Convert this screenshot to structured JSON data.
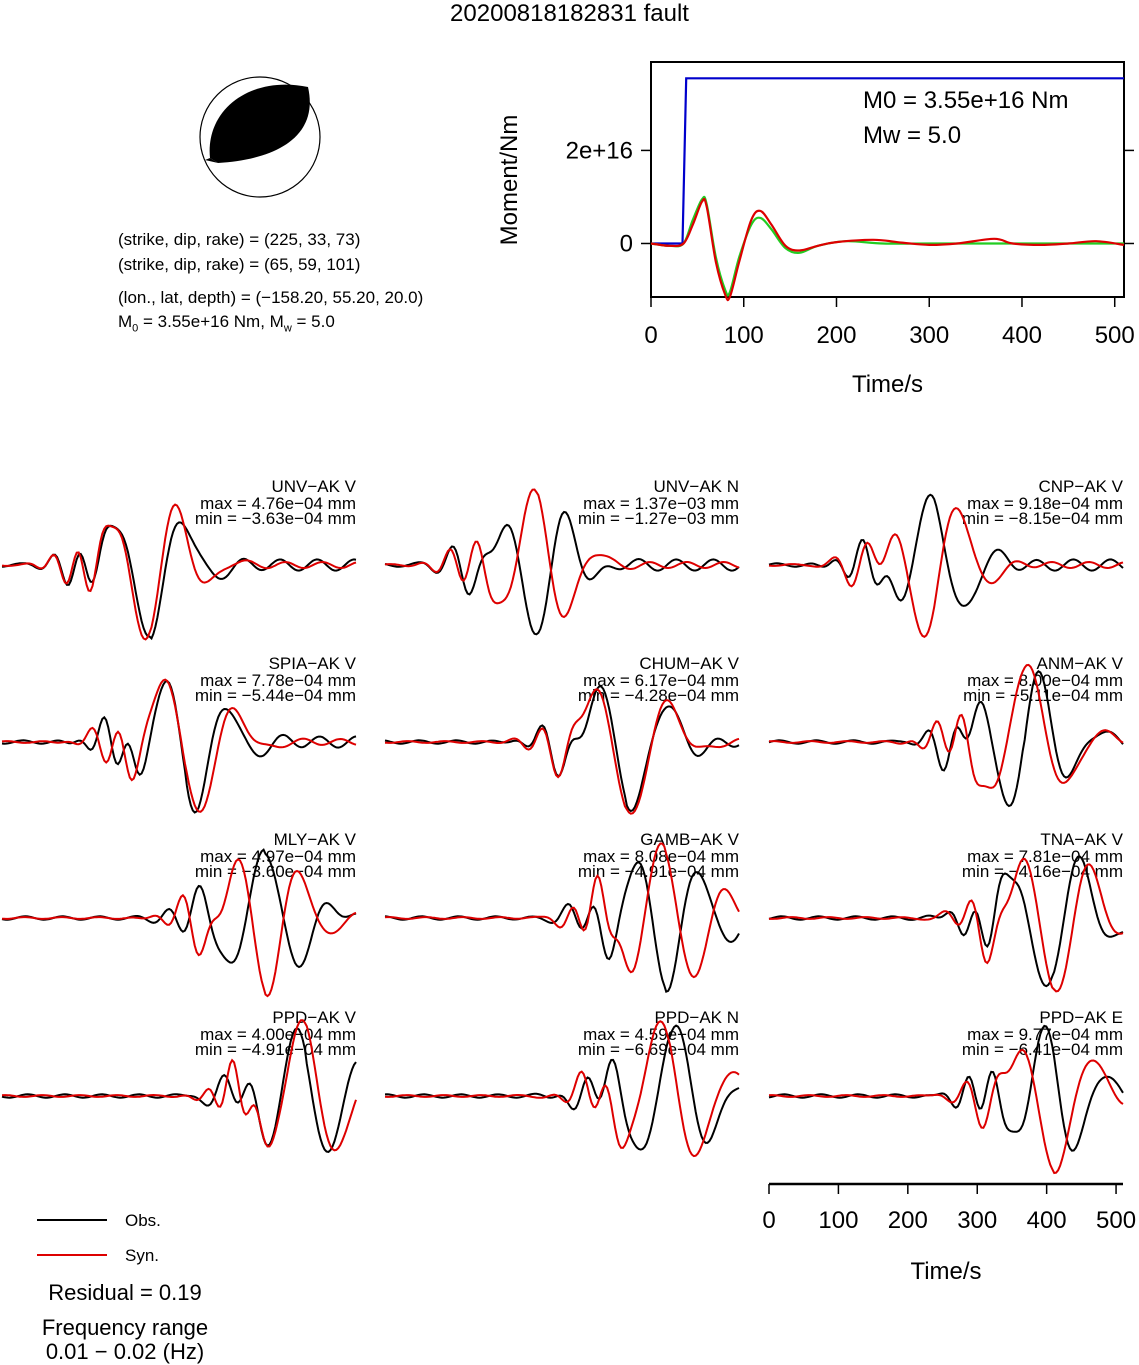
{
  "title": "20200818182831 fault",
  "mechanism": {
    "plane1": "(strike, dip, rake) = (225, 33, 73)",
    "plane2": "(strike, dip, rake) = (65, 59, 101)",
    "location": "(lon., lat, depth) = (−158.20, 55.20, 20.0)",
    "moment_line": {
      "m0_label": "M",
      "m0_sub": "0",
      "m0_value": " = 3.55e+16 Nm, M",
      "mw_sub": "w",
      "mw_value": " = 5.0"
    }
  },
  "chart_data": [
    {
      "type": "line",
      "name": "moment-rate-function",
      "ylabel": "Moment/Nm",
      "xlabel": "Time/s",
      "xlim": [
        0,
        510
      ],
      "ylim": [
        -1.15e+16,
        3.9e+16
      ],
      "x_ticks": [
        "0",
        "100",
        "200",
        "300",
        "400",
        "500"
      ],
      "y_ticks": [
        "0",
        "2e+16"
      ],
      "y_tick_values": [
        0,
        2e+16
      ],
      "annotation": {
        "m0": "M0 = 3.55e+16 Nm",
        "mw": "Mw = 5.0"
      },
      "series": [
        {
          "color": "#0000cc",
          "kind": "cumulative-moment",
          "points": [
            [
              0,
              0
            ],
            [
              34,
              0
            ],
            [
              38,
              3.55e+16
            ],
            [
              510,
              3.55e+16
            ]
          ]
        },
        {
          "color": "#22cc22",
          "kind": "moment-rate",
          "points": [
            [
              0,
              0
            ],
            [
              20,
              -500000000000000.0
            ],
            [
              35,
              0
            ],
            [
              45,
              5000000000000000.0
            ],
            [
              55,
              9500000000000000.0
            ],
            [
              60,
              8500000000000000.0
            ],
            [
              70,
              -3000000000000000.0
            ],
            [
              80,
              -1e+16
            ],
            [
              85,
              -1.05e+16
            ],
            [
              95,
              -3000000000000000.0
            ],
            [
              108,
              4000000000000000.0
            ],
            [
              118,
              5500000000000000.0
            ],
            [
              130,
              3000000000000000.0
            ],
            [
              145,
              -1000000000000000.0
            ],
            [
              160,
              -2000000000000000.0
            ],
            [
              180,
              -500000000000000.0
            ],
            [
              210,
              500000000000000.0
            ],
            [
              250,
              0
            ],
            [
              300,
              0
            ],
            [
              400,
              0
            ],
            [
              510,
              0
            ]
          ]
        },
        {
          "color": "#dd0000",
          "kind": "moment-rate",
          "points": [
            [
              0,
              0
            ],
            [
              20,
              -500000000000000.0
            ],
            [
              35,
              0
            ],
            [
              45,
              4000000000000000.0
            ],
            [
              55,
              9000000000000000.0
            ],
            [
              60,
              8000000000000000.0
            ],
            [
              70,
              -4000000000000000.0
            ],
            [
              80,
              -1.1e+16
            ],
            [
              85,
              -1.15e+16
            ],
            [
              95,
              -4000000000000000.0
            ],
            [
              108,
              5000000000000000.0
            ],
            [
              118,
              7000000000000000.0
            ],
            [
              130,
              4000000000000000.0
            ],
            [
              145,
              -500000000000000.0
            ],
            [
              160,
              -1500000000000000.0
            ],
            [
              180,
              -500000000000000.0
            ],
            [
              200,
              300000000000000.0
            ],
            [
              240,
              800000000000000.0
            ],
            [
              270,
              200000000000000.0
            ],
            [
              300,
              -300000000000000.0
            ],
            [
              330,
              0
            ],
            [
              370,
              1000000000000000.0
            ],
            [
              390,
              0
            ],
            [
              420,
              -300000000000000.0
            ],
            [
              450,
              0
            ],
            [
              480,
              500000000000000.0
            ],
            [
              510,
              -300000000000000.0
            ]
          ]
        }
      ]
    },
    {
      "type": "line",
      "name": "waveform-comparison",
      "xlabel": "Time/s",
      "xlim": [
        0,
        510
      ],
      "x_ticks": [
        "0",
        "100",
        "200",
        "300",
        "400",
        "500"
      ],
      "legend": {
        "position": "bottom-left",
        "obs": "Obs.",
        "syn": "Syn.",
        "obs_color": "#000000",
        "syn_color": "#dd0000"
      },
      "residual": "Residual = 0.19",
      "frequency_label": "Frequency range",
      "frequency_range": "0.01 − 0.02 (Hz)",
      "stations": [
        {
          "name": "UNV−AK V",
          "max": "max = 4.76e−04 mm",
          "min": "min = −3.63e−04 mm",
          "seed": 1,
          "tc": 0.42,
          "w": 0.14
        },
        {
          "name": "UNV−AK N",
          "max": "max = 1.37e−03 mm",
          "min": "min = −1.27e−03 mm",
          "seed": 2,
          "tc": 0.43,
          "w": 0.13
        },
        {
          "name": "CNP−AK V",
          "max": "max = 9.18e−04 mm",
          "min": "min = −8.15e−04 mm",
          "seed": 3,
          "tc": 0.47,
          "w": 0.13
        },
        {
          "name": "SPIA−AK V",
          "max": "max = 7.78e−04 mm",
          "min": "min = −5.44e−04 mm",
          "seed": 4,
          "tc": 0.52,
          "w": 0.15
        },
        {
          "name": "CHUM−AK V",
          "max": "max = 6.17e−04 mm",
          "min": "min = −4.28e−04 mm",
          "seed": 5,
          "tc": 0.68,
          "w": 0.15
        },
        {
          "name": "ANM−AK V",
          "max": "max = 8.00e−04 mm",
          "min": "min = −5.11e−04 mm",
          "seed": 6,
          "tc": 0.72,
          "w": 0.16
        },
        {
          "name": "MLY−AK V",
          "max": "max = 4.97e−04 mm",
          "min": "min = −3.60e−04 mm",
          "seed": 7,
          "tc": 0.74,
          "w": 0.15
        },
        {
          "name": "GAMB−AK V",
          "max": "max = 8.08e−04 mm",
          "min": "min = −4.91e−04 mm",
          "seed": 8,
          "tc": 0.79,
          "w": 0.17
        },
        {
          "name": "TNA−AK V",
          "max": "max = 7.81e−04 mm",
          "min": "min = −4.16e−04 mm",
          "seed": 9,
          "tc": 0.8,
          "w": 0.17
        },
        {
          "name": "PPD−AK V",
          "max": "max = 4.00e−04 mm",
          "min": "min = −4.91e−04 mm",
          "seed": 10,
          "tc": 0.86,
          "w": 0.16
        },
        {
          "name": "PPD−AK N",
          "max": "max = 4.59e−04 mm",
          "min": "min = −6.69e−04 mm",
          "seed": 11,
          "tc": 0.8,
          "w": 0.17
        },
        {
          "name": "PPD−AK E",
          "max": "max = 9.77e−04 mm",
          "min": "min = −6.41e−04 mm",
          "seed": 12,
          "tc": 0.8,
          "w": 0.14
        }
      ]
    }
  ]
}
